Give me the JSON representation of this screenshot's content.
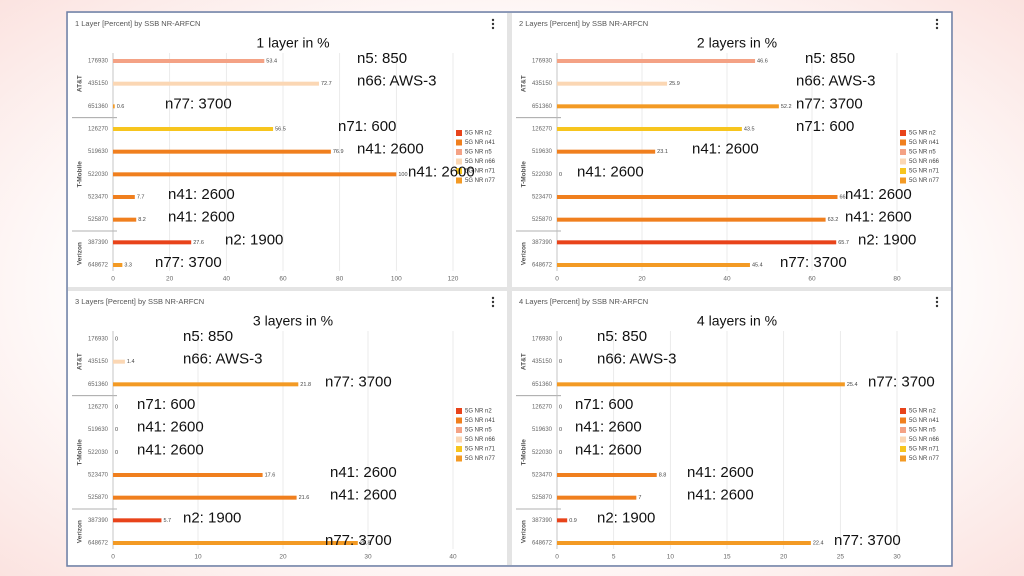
{
  "chart_data": [
    {
      "type": "bar",
      "title": "1 Layer [Percent] by SSB NR-ARFCN",
      "heading": "1 layer in %",
      "categories": [
        "176930",
        "435150",
        "651360",
        "126270",
        "519630",
        "522030",
        "523470",
        "525870",
        "387390",
        "648672"
      ],
      "groups": [
        "AT&T",
        "AT&T",
        "AT&T",
        "T-Mobile",
        "T-Mobile",
        "T-Mobile",
        "T-Mobile",
        "T-Mobile",
        "Verizon",
        "Verizon"
      ],
      "series": [
        {
          "name": "5G NR n2",
          "color": "#e8431a",
          "values": [
            null,
            null,
            null,
            null,
            null,
            null,
            null,
            null,
            27.6,
            null
          ]
        },
        {
          "name": "5G NR n41",
          "color": "#f07f1e",
          "values": [
            null,
            null,
            null,
            null,
            76.9,
            100,
            7.7,
            8.2,
            null,
            null
          ]
        },
        {
          "name": "5G NR n5",
          "color": "#f4a285",
          "values": [
            53.4,
            null,
            null,
            null,
            null,
            null,
            null,
            null,
            null,
            null
          ]
        },
        {
          "name": "5G NR n66",
          "color": "#fbd7b4",
          "values": [
            null,
            72.7,
            null,
            null,
            null,
            null,
            null,
            null,
            null,
            null
          ]
        },
        {
          "name": "5G NR n71",
          "color": "#f7c51e",
          "values": [
            null,
            null,
            null,
            56.5,
            null,
            null,
            null,
            null,
            null,
            null
          ]
        },
        {
          "name": "5G NR n77",
          "color": "#f39a24",
          "values": [
            null,
            null,
            0.6,
            null,
            null,
            null,
            null,
            null,
            null,
            3.3
          ]
        }
      ],
      "xlim": [
        0,
        120
      ],
      "xticks": [
        0,
        20,
        40,
        60,
        80,
        100,
        120
      ],
      "grid": true,
      "legend": "right",
      "annotations": [
        "n5: 850",
        "n66: AWS-3",
        "n77: 3700",
        "n71: 600",
        "n41: 2600",
        "n41: 2600",
        "n41: 2600",
        "n41: 2600",
        "n2: 1900",
        "n77: 3700"
      ]
    },
    {
      "type": "bar",
      "title": "2 Layers [Percent] by SSB NR-ARFCN",
      "heading": "2 layers in %",
      "categories": [
        "176930",
        "435150",
        "651360",
        "126270",
        "519630",
        "522030",
        "523470",
        "525870",
        "387390",
        "648672"
      ],
      "groups": [
        "AT&T",
        "AT&T",
        "AT&T",
        "T-Mobile",
        "T-Mobile",
        "T-Mobile",
        "T-Mobile",
        "T-Mobile",
        "Verizon",
        "Verizon"
      ],
      "series": [
        {
          "name": "5G NR n2",
          "color": "#e8431a",
          "values": [
            null,
            null,
            null,
            null,
            null,
            null,
            null,
            null,
            65.7,
            null
          ]
        },
        {
          "name": "5G NR n41",
          "color": "#f07f1e",
          "values": [
            null,
            null,
            null,
            null,
            23.1,
            0,
            66,
            63.2,
            null,
            null
          ]
        },
        {
          "name": "5G NR n5",
          "color": "#f4a285",
          "values": [
            46.6,
            null,
            null,
            null,
            null,
            null,
            null,
            null,
            null,
            null
          ]
        },
        {
          "name": "5G NR n66",
          "color": "#fbd7b4",
          "values": [
            null,
            25.9,
            null,
            null,
            null,
            null,
            null,
            null,
            null,
            null
          ]
        },
        {
          "name": "5G NR n71",
          "color": "#f7c51e",
          "values": [
            null,
            null,
            null,
            43.5,
            null,
            null,
            null,
            null,
            null,
            null
          ]
        },
        {
          "name": "5G NR n77",
          "color": "#f39a24",
          "values": [
            null,
            null,
            52.2,
            null,
            null,
            null,
            null,
            null,
            null,
            45.4
          ]
        }
      ],
      "xlim": [
        0,
        80
      ],
      "xticks": [
        0,
        20,
        40,
        60,
        80
      ],
      "grid": true,
      "legend": "right",
      "annotations": [
        "n5: 850",
        "n66: AWS-3",
        "n77: 3700",
        "n71: 600",
        "n41: 2600",
        "n41: 2600",
        "n41: 2600",
        "n41: 2600",
        "n2: 1900",
        "n77: 3700"
      ]
    },
    {
      "type": "bar",
      "title": "3 Layers [Percent] by SSB NR-ARFCN",
      "heading": "3 layers in %",
      "categories": [
        "176930",
        "435150",
        "651360",
        "126270",
        "519630",
        "522030",
        "523470",
        "525870",
        "387390",
        "648672"
      ],
      "groups": [
        "AT&T",
        "AT&T",
        "AT&T",
        "T-Mobile",
        "T-Mobile",
        "T-Mobile",
        "T-Mobile",
        "T-Mobile",
        "Verizon",
        "Verizon"
      ],
      "series": [
        {
          "name": "5G NR n2",
          "color": "#e8431a",
          "values": [
            null,
            null,
            null,
            null,
            null,
            null,
            null,
            null,
            5.7,
            null
          ]
        },
        {
          "name": "5G NR n41",
          "color": "#f07f1e",
          "values": [
            null,
            null,
            null,
            null,
            0,
            0,
            17.6,
            21.6,
            null,
            null
          ]
        },
        {
          "name": "5G NR n5",
          "color": "#f4a285",
          "values": [
            0,
            null,
            null,
            null,
            null,
            null,
            null,
            null,
            null,
            null
          ]
        },
        {
          "name": "5G NR n66",
          "color": "#fbd7b4",
          "values": [
            null,
            1.4,
            null,
            null,
            null,
            null,
            null,
            null,
            null,
            null
          ]
        },
        {
          "name": "5G NR n71",
          "color": "#f7c51e",
          "values": [
            null,
            null,
            null,
            0,
            null,
            null,
            null,
            null,
            null,
            null
          ]
        },
        {
          "name": "5G NR n77",
          "color": "#f39a24",
          "values": [
            null,
            null,
            21.8,
            null,
            null,
            null,
            null,
            null,
            null,
            28.8
          ]
        }
      ],
      "xlim": [
        0,
        40
      ],
      "xticks": [
        0,
        10,
        20,
        30,
        40
      ],
      "grid": true,
      "legend": "right",
      "annotations": [
        "n5: 850",
        "n66: AWS-3",
        "n77: 3700",
        "n71: 600",
        "n41: 2600",
        "n41: 2600",
        "n41: 2600",
        "n41: 2600",
        "n2: 1900",
        "n77: 3700"
      ]
    },
    {
      "type": "bar",
      "title": "4 Layers [Percent] by SSB NR-ARFCN",
      "heading": "4 layers in %",
      "categories": [
        "176930",
        "435150",
        "651360",
        "126270",
        "519630",
        "522030",
        "523470",
        "525870",
        "387390",
        "648672"
      ],
      "groups": [
        "AT&T",
        "AT&T",
        "AT&T",
        "T-Mobile",
        "T-Mobile",
        "T-Mobile",
        "T-Mobile",
        "T-Mobile",
        "Verizon",
        "Verizon"
      ],
      "series": [
        {
          "name": "5G NR n2",
          "color": "#e8431a",
          "values": [
            null,
            null,
            null,
            null,
            null,
            null,
            null,
            null,
            0.9,
            null
          ]
        },
        {
          "name": "5G NR n41",
          "color": "#f07f1e",
          "values": [
            null,
            null,
            null,
            null,
            0,
            0,
            8.8,
            7,
            null,
            null
          ]
        },
        {
          "name": "5G NR n5",
          "color": "#f4a285",
          "values": [
            0,
            null,
            null,
            null,
            null,
            null,
            null,
            null,
            null,
            null
          ]
        },
        {
          "name": "5G NR n66",
          "color": "#fbd7b4",
          "values": [
            null,
            0,
            null,
            null,
            null,
            null,
            null,
            null,
            null,
            null
          ]
        },
        {
          "name": "5G NR n71",
          "color": "#f7c51e",
          "values": [
            null,
            null,
            null,
            0,
            null,
            null,
            null,
            null,
            null,
            null
          ]
        },
        {
          "name": "5G NR n77",
          "color": "#f39a24",
          "values": [
            null,
            null,
            25.4,
            null,
            null,
            null,
            null,
            null,
            null,
            22.4
          ]
        }
      ],
      "xlim": [
        0,
        30
      ],
      "xticks": [
        0,
        5,
        10,
        15,
        20,
        25,
        30
      ],
      "grid": true,
      "legend": "right",
      "annotations": [
        "n5: 850",
        "n66: AWS-3",
        "n77: 3700",
        "n71: 600",
        "n41: 2600",
        "n41: 2600",
        "n41: 2600",
        "n41: 2600",
        "n2: 1900",
        "n77: 3700"
      ]
    }
  ]
}
